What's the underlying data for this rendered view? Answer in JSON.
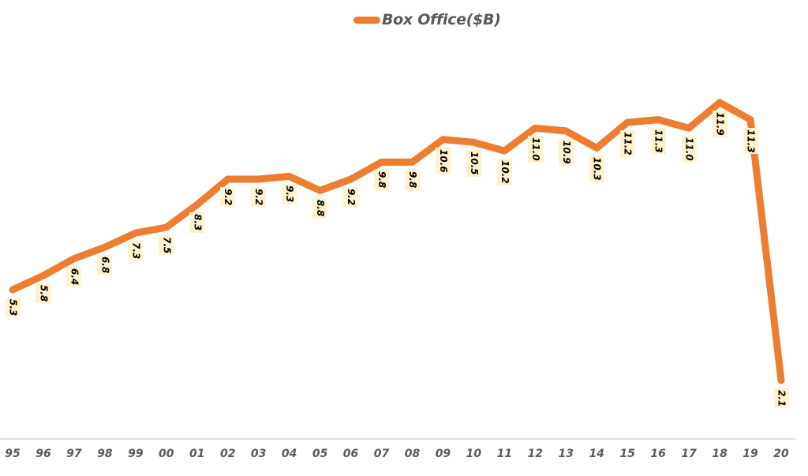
{
  "chart_data": {
    "type": "line",
    "title": "",
    "legend": [
      "Box Office($B)"
    ],
    "legend_position": "top",
    "categories": [
      "95",
      "96",
      "97",
      "98",
      "99",
      "00",
      "01",
      "02",
      "03",
      "04",
      "05",
      "06",
      "07",
      "08",
      "09",
      "10",
      "11",
      "12",
      "13",
      "14",
      "15",
      "16",
      "17",
      "18",
      "19",
      "20"
    ],
    "series": [
      {
        "name": "Box Office($B)",
        "color": "#ed7d31",
        "values": [
          5.3,
          5.8,
          6.4,
          6.8,
          7.3,
          7.5,
          8.3,
          9.2,
          9.2,
          9.3,
          8.8,
          9.2,
          9.8,
          9.8,
          10.6,
          10.5,
          10.2,
          11.0,
          10.9,
          10.3,
          11.2,
          11.3,
          11.0,
          11.9,
          11.3,
          2.1
        ],
        "labels": [
          "5.3",
          "5.8",
          "6.4",
          "6.8",
          "7.3",
          "7.5",
          "8.3",
          "9.2",
          "9.2",
          "9.3",
          "8.8",
          "9.2",
          "9.8",
          "9.8",
          "10.6",
          "10.5",
          "10.2",
          "11.0",
          "10.9",
          "10.3",
          "11.2",
          "11.3",
          "11.0",
          "11.9",
          "11.3",
          "2.1"
        ]
      }
    ],
    "xlabel": "",
    "ylabel": "",
    "grid": false,
    "y_axis_visible": false
  },
  "legend": {
    "label": "Box Office($B)",
    "color": "#ed7d31"
  }
}
